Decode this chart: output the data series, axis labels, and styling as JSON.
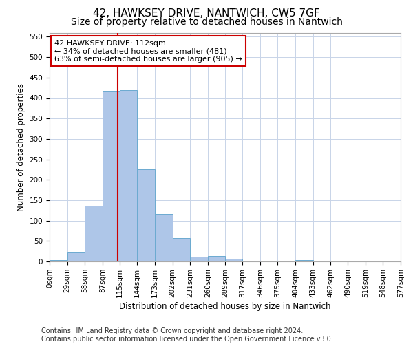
{
  "title": "42, HAWKSEY DRIVE, NANTWICH, CW5 7GF",
  "subtitle": "Size of property relative to detached houses in Nantwich",
  "xlabel": "Distribution of detached houses by size in Nantwich",
  "ylabel": "Number of detached properties",
  "bar_edges": [
    0,
    29,
    58,
    87,
    115,
    144,
    173,
    202,
    231,
    260,
    289,
    317,
    346,
    375,
    404,
    433,
    462,
    490,
    519,
    548,
    577
  ],
  "bar_heights": [
    3,
    22,
    137,
    418,
    420,
    226,
    116,
    58,
    12,
    14,
    7,
    0,
    2,
    0,
    3,
    0,
    2,
    0,
    0,
    2
  ],
  "bar_color": "#aec6e8",
  "bar_edge_color": "#6baad0",
  "property_line_x": 112,
  "property_line_color": "#cc0000",
  "annotation_line1": "42 HAWKSEY DRIVE: 112sqm",
  "annotation_line2": "← 34% of detached houses are smaller (481)",
  "annotation_line3": "63% of semi-detached houses are larger (905) →",
  "annotation_box_color": "#ffffff",
  "annotation_box_edge_color": "#cc0000",
  "ylim": [
    0,
    560
  ],
  "yticks": [
    0,
    50,
    100,
    150,
    200,
    250,
    300,
    350,
    400,
    450,
    500,
    550
  ],
  "tick_labels": [
    "0sqm",
    "29sqm",
    "58sqm",
    "87sqm",
    "115sqm",
    "144sqm",
    "173sqm",
    "202sqm",
    "231sqm",
    "260sqm",
    "289sqm",
    "317sqm",
    "346sqm",
    "375sqm",
    "404sqm",
    "433sqm",
    "462sqm",
    "490sqm",
    "519sqm",
    "548sqm",
    "577sqm"
  ],
  "footer_line1": "Contains HM Land Registry data © Crown copyright and database right 2024.",
  "footer_line2": "Contains public sector information licensed under the Open Government Licence v3.0.",
  "background_color": "#ffffff",
  "grid_color": "#c8d4e8",
  "title_fontsize": 11,
  "subtitle_fontsize": 10,
  "axis_label_fontsize": 8.5,
  "tick_fontsize": 7.5,
  "annotation_fontsize": 8,
  "footer_fontsize": 7
}
